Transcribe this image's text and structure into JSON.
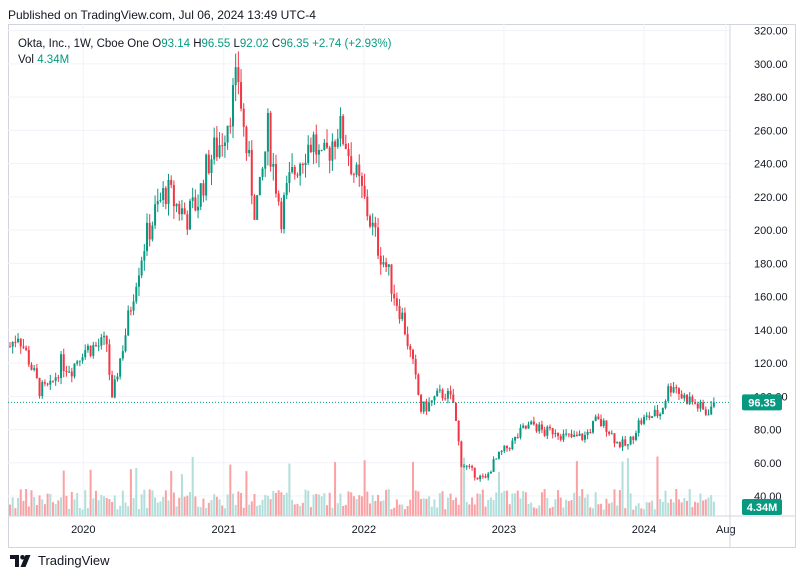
{
  "header": {
    "published": "Published on TradingView.com, Jul 06, 2024 13:49 UTC-4"
  },
  "legend": {
    "symbol": "Okta, Inc., 1W, Cboe One",
    "open_label": "O",
    "open": "93.14",
    "high_label": "H",
    "high": "96.55",
    "low_label": "L",
    "low": "92.02",
    "close_label": "C",
    "close": "96.35",
    "change": "+2.74 (+2.93%)",
    "vol_label": "Vol",
    "vol": "4.34M"
  },
  "price_badge": "96.35",
  "volume_badge": "4.34M",
  "footer": {
    "brand": "TradingView"
  },
  "colors": {
    "up": "#089981",
    "down": "#f23645",
    "vol_up": "#b2dfdb",
    "vol_down": "#faa1a4",
    "grid": "#f0f3fa",
    "axis_text": "#131722"
  },
  "chart_data": {
    "type": "candlestick",
    "title": "Okta, Inc., 1W, Cboe One",
    "x_tick_labels": [
      "2020",
      "2021",
      "2022",
      "2023",
      "2024",
      "Aug"
    ],
    "y_tick_labels": [
      "40.00",
      "60.00",
      "80.00",
      "100.00",
      "120.00",
      "140.00",
      "160.00",
      "180.00",
      "200.00",
      "220.00",
      "240.00",
      "260.00",
      "280.00",
      "300.00",
      "320.00"
    ],
    "ylim": [
      28,
      324
    ],
    "xlim": [
      "2019-06-24",
      "2024-08-12"
    ],
    "grid": true,
    "last_price": 96.35,
    "price_path": [
      [
        "2019-06-24",
        130
      ],
      [
        "2019-07-15",
        138
      ],
      [
        "2019-08-12",
        122
      ],
      [
        "2019-09-09",
        104
      ],
      [
        "2019-10-07",
        105
      ],
      [
        "2019-11-04",
        120
      ],
      [
        "2019-12-02",
        117
      ],
      [
        "2019-12-30",
        128
      ],
      [
        "2020-02-03",
        130
      ],
      [
        "2020-03-02",
        132
      ],
      [
        "2020-03-16",
        96
      ],
      [
        "2020-03-30",
        115
      ],
      [
        "2020-04-20",
        138
      ],
      [
        "2020-05-18",
        172
      ],
      [
        "2020-06-08",
        192
      ],
      [
        "2020-07-06",
        210
      ],
      [
        "2020-08-03",
        224
      ],
      [
        "2020-08-31",
        215
      ],
      [
        "2020-09-28",
        208
      ],
      [
        "2020-10-26",
        218
      ],
      [
        "2020-11-23",
        242
      ],
      [
        "2020-12-21",
        252
      ],
      [
        "2021-01-04",
        262
      ],
      [
        "2021-01-25",
        280
      ],
      [
        "2021-02-08",
        292
      ],
      [
        "2021-02-22",
        260
      ],
      [
        "2021-03-08",
        238
      ],
      [
        "2021-03-22",
        214
      ],
      [
        "2021-04-05",
        222
      ],
      [
        "2021-04-26",
        260
      ],
      [
        "2021-05-10",
        238
      ],
      [
        "2021-05-31",
        210
      ],
      [
        "2021-06-21",
        228
      ],
      [
        "2021-07-12",
        240
      ],
      [
        "2021-08-02",
        250
      ],
      [
        "2021-08-23",
        254
      ],
      [
        "2021-09-13",
        238
      ],
      [
        "2021-10-04",
        250
      ],
      [
        "2021-10-25",
        262
      ],
      [
        "2021-11-15",
        254
      ],
      [
        "2021-12-06",
        235
      ],
      [
        "2021-12-27",
        222
      ],
      [
        "2022-01-17",
        206
      ],
      [
        "2022-02-07",
        190
      ],
      [
        "2022-02-28",
        178
      ],
      [
        "2022-03-21",
        162
      ],
      [
        "2022-04-11",
        148
      ],
      [
        "2022-05-09",
        118
      ],
      [
        "2022-05-30",
        92
      ],
      [
        "2022-06-20",
        95
      ],
      [
        "2022-07-11",
        100
      ],
      [
        "2022-08-01",
        102
      ],
      [
        "2022-08-22",
        96
      ],
      [
        "2022-09-12",
        60
      ],
      [
        "2022-10-03",
        56
      ],
      [
        "2022-10-24",
        52
      ],
      [
        "2022-11-14",
        50
      ],
      [
        "2022-12-05",
        60
      ],
      [
        "2022-12-26",
        66
      ],
      [
        "2023-01-23",
        72
      ],
      [
        "2023-02-20",
        80
      ],
      [
        "2023-03-20",
        83
      ],
      [
        "2023-04-17",
        78
      ],
      [
        "2023-05-15",
        80
      ],
      [
        "2023-06-05",
        76
      ],
      [
        "2023-07-03",
        75
      ],
      [
        "2023-07-31",
        76
      ],
      [
        "2023-08-28",
        85
      ],
      [
        "2023-09-25",
        82
      ],
      [
        "2023-10-23",
        72
      ],
      [
        "2023-11-20",
        70
      ],
      [
        "2023-12-18",
        84
      ],
      [
        "2024-01-15",
        88
      ],
      [
        "2024-02-12",
        90
      ],
      [
        "2024-03-04",
        104
      ],
      [
        "2024-03-18",
        108
      ],
      [
        "2024-04-08",
        100
      ],
      [
        "2024-04-29",
        98
      ],
      [
        "2024-05-20",
        94
      ],
      [
        "2024-06-10",
        90
      ],
      [
        "2024-07-01",
        96.35
      ]
    ]
  }
}
